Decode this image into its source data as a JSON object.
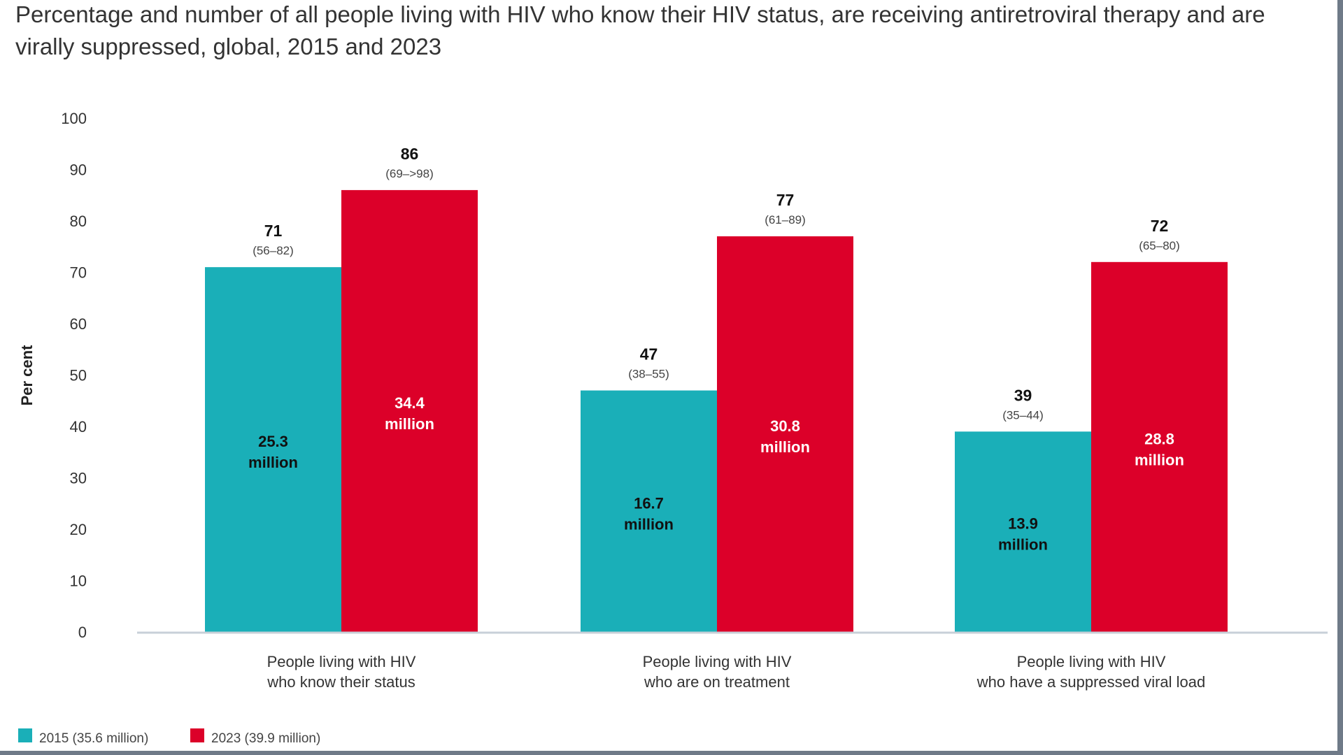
{
  "title": "Percentage and number of all people living with HIV who know their HIV status, are receiving antiretroviral therapy and are virally suppressed, global, 2015 and 2023",
  "chart_data": {
    "type": "bar",
    "title": "Percentage and number of all people living with HIV who know their HIV status, are receiving antiretroviral therapy and are virally suppressed, global, 2015 and 2023",
    "ylabel": "Per cent",
    "xlabel": "",
    "ylim": [
      0,
      100
    ],
    "yticks": [
      0,
      10,
      20,
      30,
      40,
      50,
      60,
      70,
      80,
      90,
      100
    ],
    "grid": false,
    "legend_position": "bottom-left",
    "categories": [
      [
        "People living with HIV",
        "who know their status"
      ],
      [
        "People living with HIV",
        "who are on treatment"
      ],
      [
        "People living with HIV",
        "who have a suppressed viral load"
      ]
    ],
    "series": [
      {
        "name": "2015 (35.6 million)",
        "color": "#1aafb8",
        "values": [
          71,
          47,
          39
        ],
        "ranges": [
          "(56–82)",
          "(38–55)",
          "(35–44)"
        ],
        "counts": [
          [
            "25.3",
            "million"
          ],
          [
            "16.7",
            "million"
          ],
          [
            "13.9",
            "million"
          ]
        ]
      },
      {
        "name": "2023 (39.9 million)",
        "color": "#dc0029",
        "values": [
          86,
          77,
          72
        ],
        "ranges": [
          "(69–>98)",
          "(61–89)",
          "(65–80)"
        ],
        "counts": [
          [
            "34.4",
            "million"
          ],
          [
            "30.8",
            "million"
          ],
          [
            "28.8",
            "million"
          ]
        ]
      }
    ]
  }
}
